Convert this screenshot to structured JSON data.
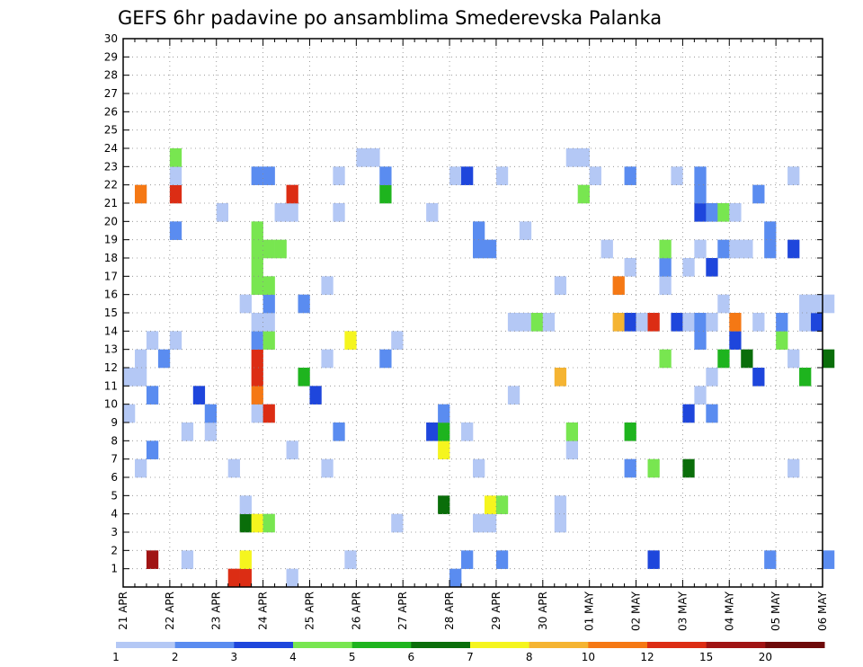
{
  "chart_data": {
    "type": "heatmap",
    "title": "GEFS 6hr padavine po ansamblima Smederevska Palanka",
    "x_tick_labels": [
      "21 APR",
      "22 APR",
      "23 APR",
      "24 APR",
      "25 APR",
      "26 APR",
      "27 APR",
      "28 APR",
      "29 APR",
      "30 APR",
      "01 MAY",
      "02 MAY",
      "03 MAY",
      "04 MAY",
      "05 MAY",
      "06 MAY"
    ],
    "y_tick_labels": [
      "1",
      "2",
      "3",
      "4",
      "5",
      "6",
      "7",
      "8",
      "9",
      "10",
      "11",
      "12",
      "13",
      "14",
      "15",
      "16",
      "17",
      "18",
      "19",
      "20",
      "21",
      "22",
      "23",
      "24",
      "25",
      "26",
      "27",
      "28",
      "29",
      "30"
    ],
    "y_range": [
      0,
      30
    ],
    "x_range_steps": [
      0,
      60
    ],
    "steps_per_day": 4,
    "grid": true,
    "colorbar": {
      "tick_labels": [
        "1",
        "2",
        "3",
        "4",
        "5",
        "6",
        "7",
        "8",
        "10",
        "12",
        "15",
        "20"
      ],
      "colors": [
        "#b4c8f5",
        "#5a8cf0",
        "#1e46dc",
        "#78e650",
        "#1eb41e",
        "#0a6e0a",
        "#f5f51e",
        "#f5b432",
        "#f57814",
        "#dc2d14",
        "#a01414",
        "#6e0a0a"
      ]
    },
    "member_rows": [
      {
        "member": 0,
        "steps": [
          9,
          10,
          14,
          28
        ],
        "values": [
          14,
          12,
          1,
          2
        ]
      },
      {
        "member": 1,
        "steps": [
          2,
          5,
          10,
          19,
          29,
          32,
          45,
          55,
          60
        ],
        "values": [
          15,
          1,
          7,
          1,
          2,
          2,
          3,
          2,
          2
        ]
      },
      {
        "member": 3,
        "steps": [
          10,
          11,
          12,
          23,
          30,
          31,
          37
        ],
        "values": [
          6,
          7,
          4,
          1,
          1,
          1,
          1
        ]
      },
      {
        "member": 4,
        "steps": [
          10,
          27,
          31,
          32,
          37
        ],
        "values": [
          1,
          6,
          7,
          4,
          1
        ]
      },
      {
        "member": 6,
        "steps": [
          1,
          9,
          17,
          30,
          43,
          45,
          48,
          57
        ],
        "values": [
          1,
          1,
          1,
          1,
          2,
          4,
          6,
          1
        ]
      },
      {
        "member": 7,
        "steps": [
          2,
          14,
          27,
          38
        ],
        "values": [
          2,
          1,
          7,
          1
        ]
      },
      {
        "member": 8,
        "steps": [
          5,
          7,
          18,
          26,
          27,
          29,
          38,
          43
        ],
        "values": [
          1,
          1,
          2,
          3,
          5,
          1,
          4,
          5
        ]
      },
      {
        "member": 9,
        "steps": [
          0,
          7,
          11,
          12,
          27,
          48,
          50
        ],
        "values": [
          1,
          2,
          1,
          12,
          2,
          3,
          2
        ]
      },
      {
        "member": 10,
        "steps": [
          2,
          6,
          11,
          16,
          33,
          49
        ],
        "values": [
          2,
          3,
          10,
          3,
          1,
          1
        ]
      },
      {
        "member": 11,
        "steps": [
          0,
          1,
          11,
          15,
          37,
          50,
          54,
          58
        ],
        "values": [
          1,
          1,
          12,
          5,
          8,
          1,
          3,
          5
        ]
      },
      {
        "member": 12,
        "steps": [
          1,
          3,
          11,
          17,
          22,
          46,
          51,
          53,
          57,
          60
        ],
        "values": [
          1,
          2,
          12,
          1,
          2,
          4,
          5,
          6,
          1,
          6
        ]
      },
      {
        "member": 13,
        "steps": [
          2,
          4,
          11,
          12,
          19,
          23,
          49,
          52,
          56
        ],
        "values": [
          1,
          1,
          2,
          4,
          7,
          1,
          2,
          3,
          4
        ]
      },
      {
        "member": 14,
        "steps": [
          11,
          12,
          33,
          34,
          35,
          36,
          42,
          43,
          44,
          45,
          47,
          48,
          49,
          50,
          52,
          54,
          56,
          58,
          59
        ],
        "values": [
          1,
          1,
          1,
          1,
          4,
          1,
          9,
          3,
          1,
          12,
          3,
          1,
          2,
          1,
          11,
          1,
          2,
          1,
          3
        ]
      },
      {
        "member": 15,
        "steps": [
          10,
          12,
          15,
          51,
          58,
          59,
          60
        ],
        "values": [
          1,
          2,
          2,
          1,
          1,
          1,
          1
        ]
      },
      {
        "member": 16,
        "steps": [
          11,
          12,
          17,
          37,
          42,
          46
        ],
        "values": [
          4,
          4,
          1,
          1,
          10,
          1
        ]
      },
      {
        "member": 17,
        "steps": [
          11,
          43,
          46,
          48,
          50
        ],
        "values": [
          4,
          1,
          2,
          1,
          3
        ]
      },
      {
        "member": 18,
        "steps": [
          11,
          12,
          13,
          30,
          31,
          41,
          46,
          49,
          51,
          52,
          53,
          55,
          57
        ],
        "values": [
          4,
          4,
          4,
          2,
          2,
          1,
          4,
          1,
          2,
          1,
          1,
          2,
          3
        ]
      },
      {
        "member": 19,
        "steps": [
          4,
          11,
          30,
          34,
          55
        ],
        "values": [
          2,
          4,
          2,
          1,
          2
        ]
      },
      {
        "member": 20,
        "steps": [
          8,
          13,
          14,
          18,
          26,
          49,
          50,
          51,
          52
        ],
        "values": [
          1,
          1,
          1,
          1,
          1,
          3,
          2,
          4,
          1
        ]
      },
      {
        "member": 21,
        "steps": [
          1,
          4,
          14,
          22,
          39,
          49,
          54
        ],
        "values": [
          11,
          12,
          14,
          5,
          4,
          2,
          2
        ]
      },
      {
        "member": 22,
        "steps": [
          4,
          11,
          12,
          18,
          22,
          28,
          29,
          32,
          40,
          43,
          47,
          49,
          57
        ],
        "values": [
          1,
          2,
          2,
          1,
          2,
          1,
          3,
          1,
          1,
          2,
          1,
          2,
          1
        ]
      },
      {
        "member": 23,
        "steps": [
          4,
          20,
          21,
          38,
          39
        ],
        "values": [
          4,
          1,
          1,
          1,
          1
        ]
      }
    ]
  }
}
